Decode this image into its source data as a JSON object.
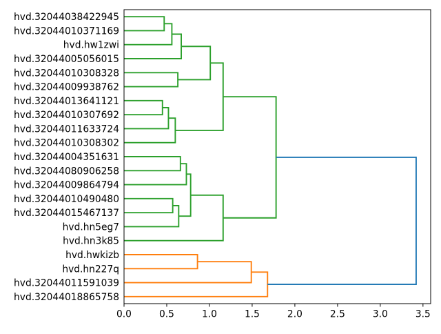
{
  "figure": {
    "background": "#ffffff"
  },
  "chart_data": {
    "type": "dendrogram",
    "orientation": "right",
    "title": "",
    "xlabel": "",
    "ylabel": "",
    "grid": false,
    "legend": false,
    "xlim": [
      0,
      3.59
    ],
    "x_ticks": [
      "0.0",
      "0.5",
      "1.0",
      "1.5",
      "2.0",
      "2.5",
      "3.0",
      "3.5"
    ],
    "colors": {
      "axis": "#000000",
      "text": "#000000",
      "cluster_green": "#2ca02c",
      "cluster_orange": "#ff7f0e",
      "root_link": "#1f77b4"
    },
    "leaves": [
      "hvd.32044038422945",
      "hvd.32044010371169",
      "hvd.hw1zwi",
      "hvd.32044005056015",
      "hvd.32044010308328",
      "hvd.32044009938762",
      "hvd.32044013641121",
      "hvd.32044010307692",
      "hvd.32044011633724",
      "hvd.32044010308302",
      "hvd.32044004351631",
      "hvd.32044080906258",
      "hvd.32044009864794",
      "hvd.32044010490480",
      "hvd.32044015467137",
      "hvd.hn5eg7",
      "hvd.hn3k85",
      "hvd.hwkizb",
      "hvd.hn227q",
      "hvd.32044011591039",
      "hvd.32044018865758"
    ],
    "merges": [
      {
        "id": "M0",
        "children": [
          "L0",
          "L1"
        ],
        "distance": 0.47,
        "color": "#2ca02c"
      },
      {
        "id": "M1",
        "children": [
          "M0",
          "L2"
        ],
        "distance": 0.56,
        "color": "#2ca02c"
      },
      {
        "id": "M2",
        "children": [
          "M1",
          "L3"
        ],
        "distance": 0.67,
        "color": "#2ca02c"
      },
      {
        "id": "M3",
        "children": [
          "L4",
          "L5"
        ],
        "distance": 0.63,
        "color": "#2ca02c"
      },
      {
        "id": "M4",
        "children": [
          "M2",
          "M3"
        ],
        "distance": 1.01,
        "color": "#2ca02c"
      },
      {
        "id": "M5",
        "children": [
          "L6",
          "L7"
        ],
        "distance": 0.45,
        "color": "#2ca02c"
      },
      {
        "id": "M6",
        "children": [
          "M5",
          "L8"
        ],
        "distance": 0.52,
        "color": "#2ca02c"
      },
      {
        "id": "M7",
        "children": [
          "M6",
          "L9"
        ],
        "distance": 0.6,
        "color": "#2ca02c"
      },
      {
        "id": "M8",
        "children": [
          "M4",
          "M7"
        ],
        "distance": 1.16,
        "color": "#2ca02c"
      },
      {
        "id": "M9",
        "children": [
          "L10",
          "L11"
        ],
        "distance": 0.66,
        "color": "#2ca02c"
      },
      {
        "id": "M10",
        "children": [
          "M9",
          "L12"
        ],
        "distance": 0.73,
        "color": "#2ca02c"
      },
      {
        "id": "M11",
        "children": [
          "L13",
          "L14"
        ],
        "distance": 0.57,
        "color": "#2ca02c"
      },
      {
        "id": "M12",
        "children": [
          "M11",
          "L15"
        ],
        "distance": 0.64,
        "color": "#2ca02c"
      },
      {
        "id": "M13",
        "children": [
          "M10",
          "M12"
        ],
        "distance": 0.78,
        "color": "#2ca02c"
      },
      {
        "id": "M14",
        "children": [
          "M13",
          "L16"
        ],
        "distance": 1.16,
        "color": "#2ca02c"
      },
      {
        "id": "M15",
        "children": [
          "M8",
          "M14"
        ],
        "distance": 1.78,
        "color": "#2ca02c"
      },
      {
        "id": "M16",
        "children": [
          "L17",
          "L18"
        ],
        "distance": 0.86,
        "color": "#ff7f0e"
      },
      {
        "id": "M17",
        "children": [
          "M16",
          "L19"
        ],
        "distance": 1.49,
        "color": "#ff7f0e"
      },
      {
        "id": "M18",
        "children": [
          "M17",
          "L20"
        ],
        "distance": 1.68,
        "color": "#ff7f0e"
      },
      {
        "id": "M19",
        "children": [
          "M15",
          "M18"
        ],
        "distance": 3.42,
        "color": "#1f77b4"
      }
    ]
  }
}
